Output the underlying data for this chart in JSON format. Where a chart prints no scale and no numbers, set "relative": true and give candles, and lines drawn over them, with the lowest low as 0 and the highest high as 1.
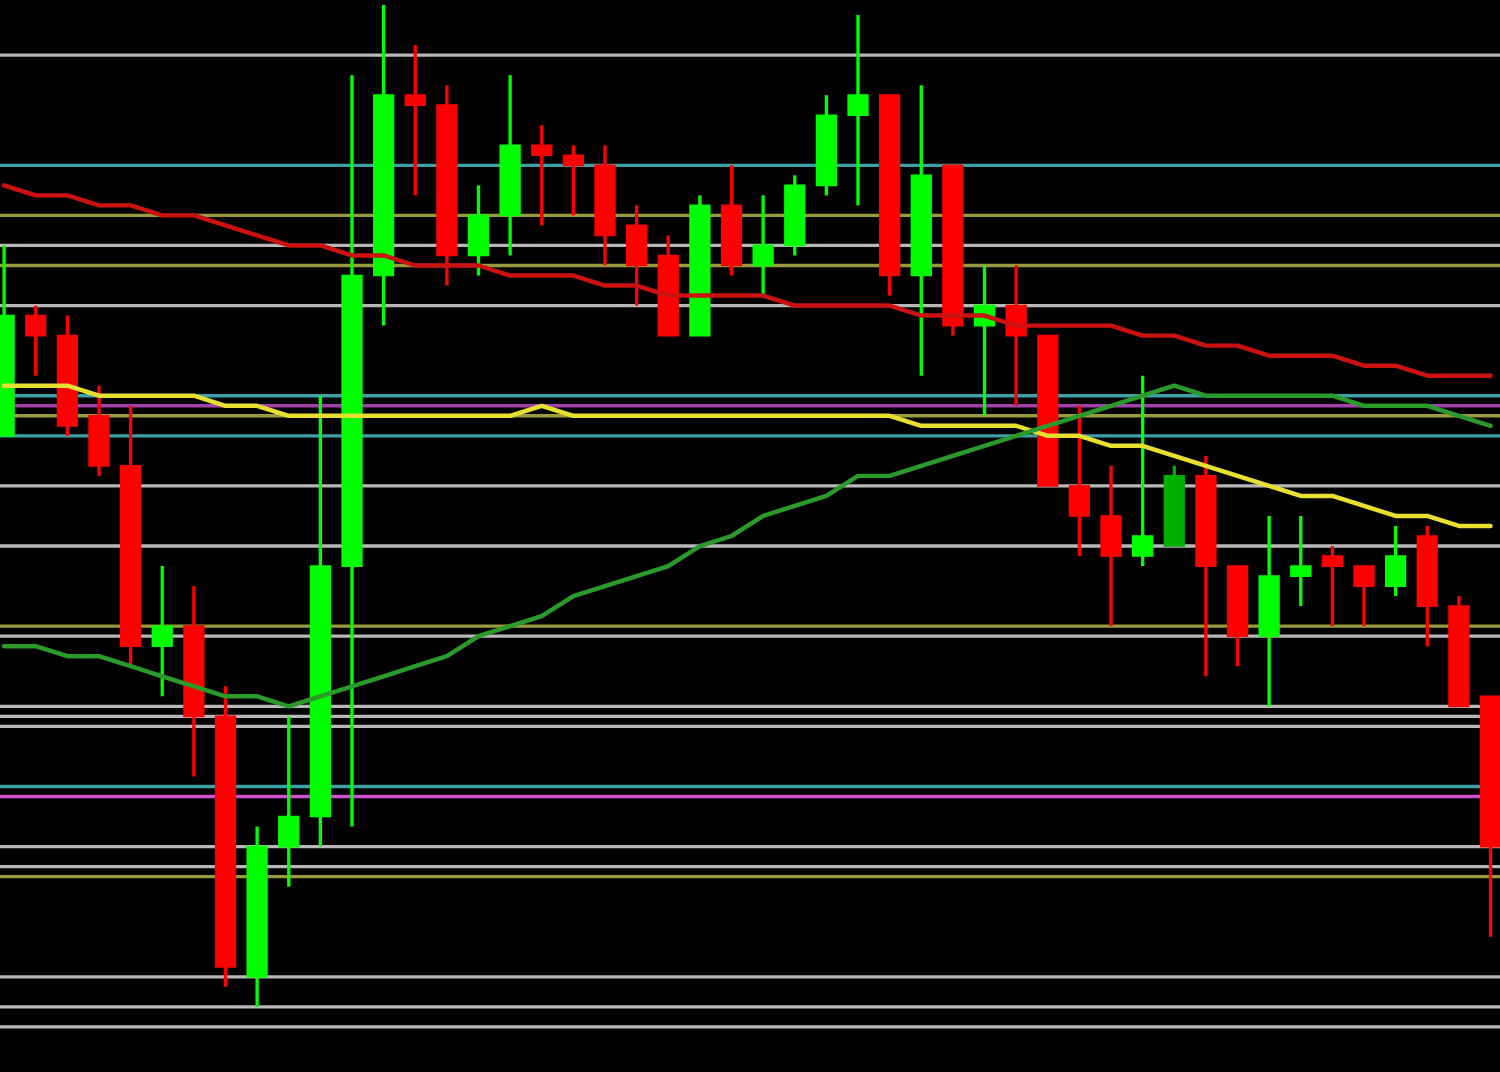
{
  "chart_data": {
    "type": "candlestick",
    "relative": true,
    "categories": [
      null,
      null,
      null,
      null,
      null,
      null,
      null,
      null,
      null,
      null,
      null,
      null,
      null,
      null,
      null,
      null,
      null,
      null,
      null,
      null,
      null,
      null,
      null,
      null,
      null,
      null,
      null,
      null,
      null,
      null,
      null,
      null,
      null,
      null,
      null,
      null,
      null,
      null,
      null,
      null,
      null,
      null,
      null,
      null,
      null,
      null,
      null,
      null
    ],
    "ohlc": [
      [
        0.57,
        0.76,
        0.57,
        0.69
      ],
      [
        0.69,
        0.7,
        0.63,
        0.67
      ],
      [
        0.67,
        0.69,
        0.57,
        0.58
      ],
      [
        0.59,
        0.62,
        0.53,
        0.54
      ],
      [
        0.54,
        0.6,
        0.34,
        0.36
      ],
      [
        0.36,
        0.44,
        0.31,
        0.38
      ],
      [
        0.38,
        0.42,
        0.23,
        0.29
      ],
      [
        0.29,
        0.32,
        0.02,
        0.04
      ],
      [
        0.03,
        0.18,
        0.0,
        0.16
      ],
      [
        0.16,
        0.29,
        0.12,
        0.19
      ],
      [
        0.19,
        0.61,
        0.16,
        0.44
      ],
      [
        0.44,
        0.93,
        0.18,
        0.73
      ],
      [
        0.73,
        1.0,
        0.68,
        0.91
      ],
      [
        0.91,
        0.96,
        0.81,
        0.9
      ],
      [
        0.9,
        0.92,
        0.72,
        0.75
      ],
      [
        0.75,
        0.82,
        0.73,
        0.79
      ],
      [
        0.79,
        0.93,
        0.75,
        0.86
      ],
      [
        0.86,
        0.88,
        0.78,
        0.85
      ],
      [
        0.85,
        0.86,
        0.79,
        0.84
      ],
      [
        0.84,
        0.86,
        0.74,
        0.77
      ],
      [
        0.78,
        0.8,
        0.7,
        0.74
      ],
      [
        0.75,
        0.77,
        0.67,
        0.67
      ],
      [
        0.67,
        0.81,
        0.67,
        0.8
      ],
      [
        0.8,
        0.84,
        0.73,
        0.74
      ],
      [
        0.74,
        0.81,
        0.71,
        0.76
      ],
      [
        0.76,
        0.83,
        0.75,
        0.82
      ],
      [
        0.82,
        0.91,
        0.81,
        0.89
      ],
      [
        0.89,
        0.99,
        0.8,
        0.91
      ],
      [
        0.91,
        0.91,
        0.71,
        0.73
      ],
      [
        0.73,
        0.92,
        0.63,
        0.83
      ],
      [
        0.84,
        0.84,
        0.67,
        0.68
      ],
      [
        0.68,
        0.74,
        0.59,
        0.7
      ],
      [
        0.7,
        0.74,
        0.6,
        0.67
      ],
      [
        0.67,
        0.67,
        0.52,
        0.52
      ],
      [
        0.52,
        0.6,
        0.45,
        0.49
      ],
      [
        0.49,
        0.54,
        0.38,
        0.45
      ],
      [
        0.45,
        0.63,
        0.44,
        0.47
      ],
      [
        0.46,
        0.54,
        0.46,
        0.53
      ],
      [
        0.53,
        0.55,
        0.33,
        0.44
      ],
      [
        0.44,
        0.44,
        0.34,
        0.37
      ],
      [
        0.37,
        0.49,
        0.3,
        0.43
      ],
      [
        0.43,
        0.49,
        0.4,
        0.44
      ],
      [
        0.45,
        0.46,
        0.38,
        0.44
      ],
      [
        0.44,
        0.44,
        0.38,
        0.42
      ],
      [
        0.42,
        0.48,
        0.41,
        0.45
      ],
      [
        0.47,
        0.48,
        0.36,
        0.4
      ],
      [
        0.4,
        0.41,
        0.3,
        0.3
      ],
      [
        0.31,
        0.31,
        0.07,
        0.16
      ]
    ],
    "colors": [
      "#00ff00",
      "#ff0000",
      "#ff0000",
      "#ff0000",
      "#ff0000",
      "#00ff00",
      "#ff0000",
      "#ff0000",
      "#00ff00",
      "#00ff00",
      "#00ff00",
      "#00ff00",
      "#00ff00",
      "#ff0000",
      "#ff0000",
      "#00ff00",
      "#00ff00",
      "#ff0000",
      "#ff0000",
      "#ff0000",
      "#ff0000",
      "#ff0000",
      "#00ff00",
      "#ff0000",
      "#00ff00",
      "#00ff00",
      "#00ff00",
      "#00ff00",
      "#ff0000",
      "#00ff00",
      "#ff0000",
      "#00ff00",
      "#ff0000",
      "#ff0000",
      "#ff0000",
      "#ff0000",
      "#00ff00",
      "#00b000",
      "#ff0000",
      "#ff0000",
      "#00ff00",
      "#00ff00",
      "#ff0000",
      "#ff0000",
      "#00ff00",
      "#ff0000",
      "#ff0000",
      "#ff0000"
    ],
    "series": [
      {
        "type": "line",
        "color": "#cc1111",
        "values": [
          0.82,
          0.81,
          0.81,
          0.8,
          0.8,
          0.79,
          0.79,
          0.78,
          0.77,
          0.76,
          0.76,
          0.75,
          0.75,
          0.74,
          0.74,
          0.74,
          0.73,
          0.73,
          0.73,
          0.72,
          0.72,
          0.71,
          0.71,
          0.71,
          0.71,
          0.7,
          0.7,
          0.7,
          0.7,
          0.69,
          0.69,
          0.69,
          0.68,
          0.68,
          0.68,
          0.68,
          0.67,
          0.67,
          0.66,
          0.66,
          0.65,
          0.65,
          0.65,
          0.64,
          0.64,
          0.63,
          0.63,
          0.63
        ]
      },
      {
        "type": "line",
        "color": "#e8e030",
        "values": [
          0.62,
          0.62,
          0.62,
          0.61,
          0.61,
          0.61,
          0.61,
          0.6,
          0.6,
          0.59,
          0.59,
          0.59,
          0.59,
          0.59,
          0.59,
          0.59,
          0.59,
          0.6,
          0.59,
          0.59,
          0.59,
          0.59,
          0.59,
          0.59,
          0.59,
          0.59,
          0.59,
          0.59,
          0.59,
          0.58,
          0.58,
          0.58,
          0.58,
          0.57,
          0.57,
          0.56,
          0.56,
          0.55,
          0.54,
          0.53,
          0.52,
          0.51,
          0.51,
          0.5,
          0.49,
          0.49,
          0.48,
          0.48
        ]
      },
      {
        "type": "line",
        "color": "#2a9a2a",
        "values": [
          0.36,
          0.36,
          0.35,
          0.35,
          0.34,
          0.33,
          0.32,
          0.31,
          0.31,
          0.3,
          0.31,
          0.32,
          0.33,
          0.34,
          0.35,
          0.37,
          0.38,
          0.39,
          0.41,
          0.42,
          0.43,
          0.44,
          0.46,
          0.47,
          0.49,
          0.5,
          0.51,
          0.53,
          0.53,
          0.54,
          0.55,
          0.56,
          0.57,
          0.58,
          0.59,
          0.6,
          0.61,
          0.62,
          0.61,
          0.61,
          0.61,
          0.61,
          0.61,
          0.6,
          0.6,
          0.6,
          0.59,
          0.58
        ]
      }
    ],
    "ref_lines": [
      {
        "axis": "y",
        "value": 0.95,
        "color": "#b8b8b8"
      },
      {
        "axis": "y",
        "value": 0.84,
        "color": "#3fa0a8"
      },
      {
        "axis": "y",
        "value": 0.79,
        "color": "#9a9a40"
      },
      {
        "axis": "y",
        "value": 0.76,
        "color": "#b8b8b8"
      },
      {
        "axis": "y",
        "value": 0.74,
        "color": "#9a9a40"
      },
      {
        "axis": "y",
        "value": 0.7,
        "color": "#b8b8b8"
      },
      {
        "axis": "y",
        "value": 0.61,
        "color": "#3fa0a8"
      },
      {
        "axis": "y",
        "value": 0.6,
        "color": "#a040a8"
      },
      {
        "axis": "y",
        "value": 0.59,
        "color": "#9a9a40"
      },
      {
        "axis": "y",
        "value": 0.57,
        "color": "#3fa0a8"
      },
      {
        "axis": "y",
        "value": 0.52,
        "color": "#b8b8b8"
      },
      {
        "axis": "y",
        "value": 0.46,
        "color": "#b8b8b8"
      },
      {
        "axis": "y",
        "value": 0.38,
        "color": "#9a9a40"
      },
      {
        "axis": "y",
        "value": 0.37,
        "color": "#b8b8b8"
      },
      {
        "axis": "y",
        "value": 0.3,
        "color": "#b8b8b8"
      },
      {
        "axis": "y",
        "value": 0.29,
        "color": "#b8b8b8"
      },
      {
        "axis": "y",
        "value": 0.28,
        "color": "#b8b8b8"
      },
      {
        "axis": "y",
        "value": 0.22,
        "color": "#3fa0a8"
      },
      {
        "axis": "y",
        "value": 0.21,
        "color": "#d050d0"
      },
      {
        "axis": "y",
        "value": 0.16,
        "color": "#b8b8b8"
      },
      {
        "axis": "y",
        "value": 0.14,
        "color": "#b8b8b8"
      },
      {
        "axis": "y",
        "value": 0.13,
        "color": "#9a9a40"
      },
      {
        "axis": "y",
        "value": 0.03,
        "color": "#b8b8b8"
      },
      {
        "axis": "y",
        "value": 0.0,
        "color": "#b8b8b8"
      },
      {
        "axis": "y",
        "value": -0.02,
        "color": "#b8b8b8"
      }
    ]
  }
}
